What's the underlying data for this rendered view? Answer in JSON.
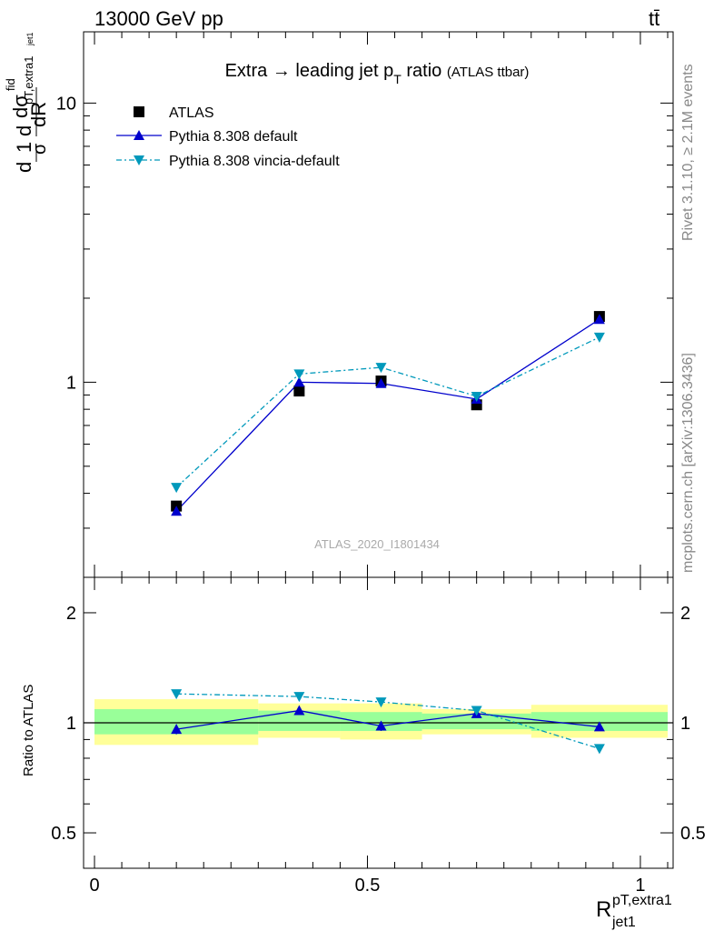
{
  "header": {
    "energy": "13000 GeV pp",
    "process": "tt̄"
  },
  "side": {
    "rivet": "Rivet 3.1.10, ≥ 2.1M events",
    "url": "mcplots.cern.ch [arXiv:1306.3436]"
  },
  "watermark": "ATLAS_2020_I1801434",
  "colors": {
    "atlas": "#000000",
    "default": "#0000cc",
    "vincia": "#0099bb",
    "band_inner": "#99ff99",
    "band_outer": "#ffff99"
  },
  "chart_data": [
    {
      "type": "scatter",
      "title": "Extra → leading jet p_T ratio",
      "title_main": "Extra",
      "title_arrow": "→",
      "title_rest": "leading jet p",
      "title_sub": "T",
      "title_end": "ratio",
      "title_note": "(ATLAS ttbar)",
      "ylabel_parts": {
        "numerator": "dσ",
        "sup": "fid",
        "sub": "pT,extra1",
        "sub2": "jet1",
        "den": "dR",
        "prefix_num": "1",
        "prefix_den": "σ",
        "d": "d"
      },
      "yscale": "log",
      "ylim": [
        0.2,
        18
      ],
      "yticks": [
        {
          "value": 1,
          "label": "1"
        },
        {
          "value": 10,
          "label": "10"
        }
      ],
      "xlim": [
        -0.02,
        1.06
      ],
      "legend": {
        "placement": "top-left",
        "entries": [
          "ATLAS",
          "Pythia 8.308 default",
          "Pythia 8.308 vincia-default"
        ]
      },
      "series": [
        {
          "name": "ATLAS",
          "marker": "square",
          "x": [
            0.15,
            0.375,
            0.525,
            0.7,
            0.925
          ],
          "y": [
            0.36,
            0.93,
            1.01,
            0.83,
            1.72
          ]
        },
        {
          "name": "Pythia 8.308 default",
          "marker": "triangle-up",
          "x": [
            0.15,
            0.375,
            0.525,
            0.7,
            0.925
          ],
          "y": [
            0.345,
            1.0,
            0.99,
            0.87,
            1.68
          ]
        },
        {
          "name": "Pythia 8.308 vincia-default",
          "marker": "triangle-down",
          "x": [
            0.15,
            0.375,
            0.525,
            0.7,
            0.925
          ],
          "y": [
            0.42,
            1.07,
            1.13,
            0.89,
            1.45
          ]
        }
      ]
    },
    {
      "type": "scatter",
      "ylabel": "Ratio to ATLAS",
      "xlabel_main": "R",
      "xlabel_sup": "pT,extra1",
      "xlabel_sub": "jet1",
      "ylim": [
        0.4,
        2.5
      ],
      "yscale": "log",
      "yticks": [
        {
          "value": 0.5,
          "label": "0.5"
        },
        {
          "value": 1,
          "label": "1"
        },
        {
          "value": 2,
          "label": "2"
        }
      ],
      "xlim": [
        -0.02,
        1.06
      ],
      "xticks": [
        {
          "value": 0,
          "label": "0"
        },
        {
          "value": 0.5,
          "label": "0.5"
        },
        {
          "value": 1,
          "label": "1"
        }
      ],
      "bands": [
        {
          "x": [
            0.0,
            0.3
          ],
          "inner": [
            0.93,
            1.09
          ],
          "outer": [
            0.87,
            1.16
          ]
        },
        {
          "x": [
            0.3,
            0.45
          ],
          "inner": [
            0.95,
            1.08
          ],
          "outer": [
            0.91,
            1.13
          ]
        },
        {
          "x": [
            0.45,
            0.6
          ],
          "inner": [
            0.95,
            1.07
          ],
          "outer": [
            0.9,
            1.13
          ]
        },
        {
          "x": [
            0.6,
            0.8
          ],
          "inner": [
            0.96,
            1.06
          ],
          "outer": [
            0.93,
            1.09
          ]
        },
        {
          "x": [
            0.8,
            1.05
          ],
          "inner": [
            0.95,
            1.07
          ],
          "outer": [
            0.91,
            1.12
          ]
        }
      ],
      "series": [
        {
          "name": "Pythia 8.308 default",
          "marker": "triangle-up",
          "x": [
            0.15,
            0.375,
            0.525,
            0.7,
            0.925
          ],
          "y": [
            0.96,
            1.08,
            0.98,
            1.06,
            0.975
          ],
          "err": [
            0.03,
            0.025,
            0.03,
            0.02,
            0.01
          ]
        },
        {
          "name": "Pythia 8.308 vincia-default",
          "marker": "triangle-down",
          "x": [
            0.15,
            0.375,
            0.525,
            0.7,
            0.925
          ],
          "y": [
            1.2,
            1.18,
            1.14,
            1.08,
            0.85
          ],
          "err": [
            0.03,
            0.02,
            0.02,
            0.015,
            0.01
          ]
        }
      ]
    }
  ]
}
